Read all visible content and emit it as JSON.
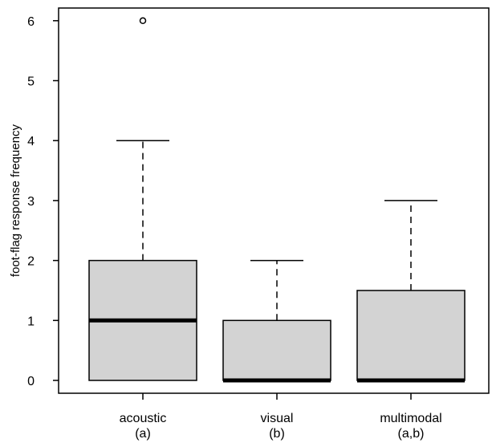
{
  "chart_data": {
    "type": "boxplot",
    "title": "",
    "xlabel": "",
    "ylabel": "foot-flag response frequency",
    "ylim": [
      -0.2,
      6.25
    ],
    "yticks": [
      0,
      1,
      2,
      3,
      4,
      5,
      6
    ],
    "grid": false,
    "box_color": "#d3d3d3",
    "categories": [
      {
        "name": "acoustic",
        "group": "(a)",
        "min": 0,
        "q1": 0,
        "median": 1,
        "q3": 2,
        "max": 4,
        "outliers": [
          6
        ]
      },
      {
        "name": "visual",
        "group": "(b)",
        "min": 0,
        "q1": 0,
        "median": 0,
        "q3": 1,
        "max": 2,
        "outliers": []
      },
      {
        "name": "multimodal",
        "group": "(a,b)",
        "min": 0,
        "q1": 0,
        "median": 0,
        "q3": 1.5,
        "max": 3,
        "outliers": []
      }
    ]
  }
}
